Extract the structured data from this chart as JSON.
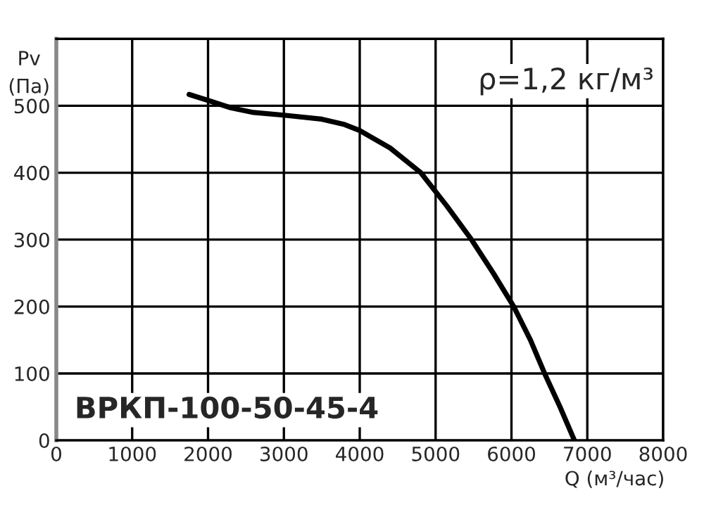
{
  "chart_data": {
    "type": "line",
    "xlabel": "Q (м³/час)",
    "ylabel": "Pv\n(Па)",
    "annotations": [
      "ρ=1,2 кг/м³",
      "ВРКП-100-50-45-4"
    ],
    "series": [
      {
        "color": "#000000",
        "x": [
          1750,
          2000,
          2300,
          2600,
          3000,
          3500,
          3800,
          4000,
          4400,
          4805,
          5150,
          5473,
          5760,
          6030,
          6250,
          6437,
          6640,
          6830
        ],
        "values": [
          517,
          508,
          497,
          490,
          486,
          480,
          472,
          463,
          437,
          400,
          350,
          300,
          250,
          200,
          150,
          100,
          50,
          0
        ]
      }
    ],
    "xlim": [
      0,
      8000
    ],
    "xticks": [
      0,
      1000,
      2000,
      3000,
      4000,
      5000,
      6000,
      7000,
      8000
    ],
    "ylim": [
      0,
      600
    ],
    "yticks": [
      0,
      100,
      200,
      300,
      400,
      500,
      {
        "value": 600,
        "label": null
      }
    ],
    "grid": true,
    "legend": false,
    "marker": "none",
    "line_style": "solid"
  }
}
